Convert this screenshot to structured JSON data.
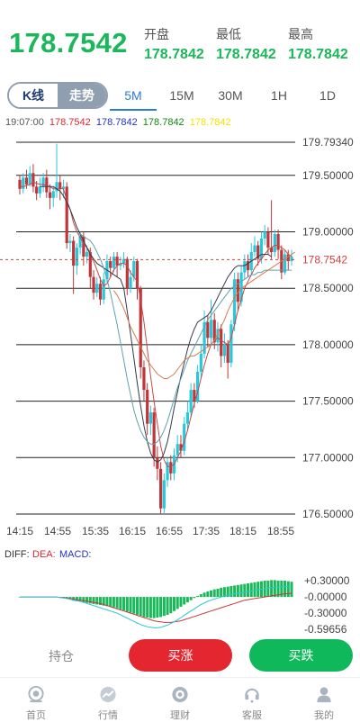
{
  "header": {
    "price": "178.7542",
    "open_label": "开盘",
    "open_value": "178.7842",
    "low_label": "最低",
    "low_value": "178.7842",
    "high_label": "最高",
    "high_value": "178.7842"
  },
  "tabs": {
    "kline_label": "K线",
    "trend_label": "走势",
    "periods": [
      "5M",
      "15M",
      "30M",
      "1H",
      "1D"
    ],
    "active_period": "5M"
  },
  "ma_legend": {
    "time": "19:07:00",
    "v1": "178.7542",
    "v2": "178.7842",
    "v3": "178.7842",
    "v4": "178.7842",
    "c1": "#e0262f",
    "c2": "#2233cc",
    "c3": "#118811",
    "c4": "#f2e200"
  },
  "chart_data": {
    "type": "candlestick",
    "y_ticks": [
      "179.79340",
      "179.50000",
      "179.00000",
      "178.50000",
      "178.00000",
      "177.50000",
      "177.00000",
      "176.50000"
    ],
    "x_ticks": [
      "14:15",
      "14:55",
      "15:35",
      "16:15",
      "16:55",
      "17:35",
      "18:15",
      "18:55"
    ],
    "current_price_label": "178.7542",
    "ylim": [
      176.5,
      179.7934
    ],
    "candles": [
      [
        179.46,
        179.38,
        179.5,
        179.33
      ],
      [
        179.38,
        179.48,
        179.52,
        179.34
      ],
      [
        179.48,
        179.42,
        179.55,
        179.38
      ],
      [
        179.42,
        179.52,
        179.58,
        179.4
      ],
      [
        179.52,
        179.4,
        179.6,
        179.35
      ],
      [
        179.4,
        179.34,
        179.45,
        179.28
      ],
      [
        179.34,
        179.4,
        179.48,
        179.3
      ],
      [
        179.4,
        179.48,
        179.52,
        179.35
      ],
      [
        179.48,
        179.35,
        179.55,
        179.3
      ],
      [
        179.35,
        179.3,
        179.42,
        179.2
      ],
      [
        179.3,
        179.36,
        179.4,
        179.22
      ],
      [
        179.36,
        179.44,
        179.78,
        179.3
      ],
      [
        179.44,
        179.38,
        179.5,
        179.28
      ],
      [
        179.38,
        179.4,
        179.46,
        179.3
      ],
      [
        179.4,
        178.9,
        179.44,
        178.85
      ],
      [
        178.9,
        178.92,
        178.98,
        178.82
      ],
      [
        178.92,
        178.7,
        178.96,
        178.45
      ],
      [
        178.7,
        178.86,
        178.9,
        178.62
      ],
      [
        178.86,
        178.96,
        179.0,
        178.8
      ],
      [
        178.96,
        178.78,
        179.0,
        178.7
      ],
      [
        178.78,
        178.82,
        178.88,
        178.72
      ],
      [
        178.82,
        178.6,
        178.86,
        178.5
      ],
      [
        178.6,
        178.46,
        178.66,
        178.4
      ],
      [
        178.46,
        178.54,
        178.6,
        178.42
      ],
      [
        178.54,
        178.4,
        178.6,
        178.35
      ],
      [
        178.4,
        178.58,
        178.64,
        178.36
      ],
      [
        178.58,
        178.74,
        178.8,
        178.55
      ],
      [
        178.74,
        178.68,
        178.78,
        178.6
      ],
      [
        178.68,
        178.78,
        178.82,
        178.64
      ],
      [
        178.78,
        178.7,
        178.82,
        178.6
      ],
      [
        178.7,
        178.72,
        178.78,
        178.66
      ],
      [
        178.72,
        178.76,
        178.82,
        178.68
      ],
      [
        178.76,
        178.5,
        178.78,
        178.44
      ],
      [
        178.5,
        178.6,
        178.66,
        178.46
      ],
      [
        178.6,
        178.74,
        178.78,
        178.56
      ],
      [
        178.74,
        178.5,
        178.76,
        178.4
      ],
      [
        178.5,
        177.8,
        178.52,
        177.7
      ],
      [
        177.8,
        177.6,
        177.86,
        177.5
      ],
      [
        177.6,
        177.3,
        177.66,
        177.2
      ],
      [
        177.3,
        177.4,
        177.46,
        177.2
      ],
      [
        177.4,
        177.0,
        177.44,
        176.92
      ],
      [
        177.0,
        176.9,
        177.1,
        176.8
      ],
      [
        176.9,
        176.55,
        176.96,
        176.5
      ],
      [
        176.55,
        176.8,
        176.86,
        176.5
      ],
      [
        176.8,
        176.96,
        177.0,
        176.74
      ],
      [
        176.96,
        176.86,
        177.02,
        176.8
      ],
      [
        176.86,
        177.02,
        177.08,
        176.8
      ],
      [
        177.02,
        177.12,
        177.2,
        176.96
      ],
      [
        177.12,
        177.06,
        177.2,
        177.0
      ],
      [
        177.06,
        177.3,
        177.36,
        177.02
      ],
      [
        177.3,
        177.4,
        177.5,
        177.24
      ],
      [
        177.4,
        177.6,
        177.66,
        177.36
      ],
      [
        177.6,
        177.5,
        177.66,
        177.44
      ],
      [
        177.5,
        177.76,
        177.82,
        177.48
      ],
      [
        177.76,
        177.92,
        178.0,
        177.7
      ],
      [
        177.92,
        178.2,
        178.3,
        177.88
      ],
      [
        178.2,
        178.06,
        178.26,
        177.98
      ],
      [
        178.06,
        178.22,
        178.4,
        178.0
      ],
      [
        178.22,
        178.02,
        178.28,
        177.96
      ],
      [
        178.02,
        178.14,
        178.2,
        177.94
      ],
      [
        178.14,
        177.9,
        178.18,
        177.8
      ],
      [
        177.9,
        178.0,
        178.1,
        177.84
      ],
      [
        178.0,
        177.84,
        178.04,
        177.7
      ],
      [
        177.84,
        178.18,
        178.22,
        177.8
      ],
      [
        178.18,
        178.58,
        178.64,
        178.12
      ],
      [
        178.58,
        178.38,
        178.64,
        178.3
      ],
      [
        178.38,
        178.64,
        178.7,
        178.34
      ],
      [
        178.64,
        178.74,
        178.8,
        178.58
      ],
      [
        178.74,
        178.66,
        178.8,
        178.6
      ],
      [
        178.66,
        178.82,
        178.9,
        178.62
      ],
      [
        178.82,
        178.88,
        178.96,
        178.78
      ],
      [
        178.88,
        178.76,
        178.92,
        178.7
      ],
      [
        178.76,
        178.94,
        179.0,
        178.72
      ],
      [
        178.94,
        179.0,
        179.06,
        178.88
      ],
      [
        179.0,
        178.86,
        179.04,
        178.8
      ],
      [
        178.86,
        178.82,
        179.28,
        178.76
      ],
      [
        178.82,
        178.98,
        179.02,
        178.78
      ],
      [
        178.98,
        178.84,
        179.02,
        178.76
      ],
      [
        178.84,
        178.64,
        178.88,
        178.58
      ],
      [
        178.64,
        178.8,
        178.84,
        178.62
      ],
      [
        178.8,
        178.74,
        178.84,
        178.66
      ],
      [
        178.74,
        178.78,
        178.84,
        178.7
      ]
    ],
    "ma_lines": [
      {
        "color": "#c44a4a",
        "values": [
          179.4,
          179.4,
          179.41,
          179.42,
          179.44,
          179.43,
          179.42,
          179.42,
          179.41,
          179.4,
          179.38,
          179.38,
          179.38,
          179.38,
          179.28,
          179.2,
          179.08,
          179.0,
          178.95,
          178.9,
          178.86,
          178.82,
          178.74,
          178.66,
          178.58,
          178.52,
          178.54,
          178.6,
          178.66,
          178.7,
          178.72,
          178.72,
          178.7,
          178.64,
          178.6,
          178.56,
          178.4,
          178.2,
          177.96,
          177.72,
          177.5,
          177.3,
          177.1,
          176.98,
          176.92,
          176.92,
          176.94,
          177.0,
          177.06,
          177.14,
          177.24,
          177.36,
          177.48,
          177.58,
          177.7,
          177.82,
          177.92,
          178.0,
          178.04,
          178.06,
          178.04,
          178.02,
          178.0,
          178.06,
          178.18,
          178.3,
          178.4,
          178.5,
          178.56,
          178.62,
          178.68,
          178.72,
          178.76,
          178.8,
          178.84,
          178.86,
          178.88,
          178.88,
          178.86,
          178.84,
          178.8,
          178.78
        ]
      },
      {
        "color": "#333a4a",
        "start": 6,
        "values": [
          179.4,
          179.4,
          179.4,
          179.4,
          179.4,
          179.38,
          179.36,
          179.32,
          179.26,
          179.2,
          179.12,
          179.04,
          178.98,
          178.92,
          178.86,
          178.8,
          178.76,
          178.72,
          178.7,
          178.68,
          178.66,
          178.64,
          178.62,
          178.6,
          178.58,
          178.5,
          178.3,
          178.1,
          177.88,
          177.66,
          177.46,
          177.28,
          177.14,
          177.04,
          176.98,
          176.96,
          176.98,
          177.04,
          177.14,
          177.28,
          177.44,
          177.58,
          177.72,
          177.84,
          177.96,
          178.06,
          178.14,
          178.2,
          178.22,
          178.24,
          178.26,
          178.3,
          178.36,
          178.42,
          178.48,
          178.54,
          178.6,
          178.64,
          178.68,
          178.7,
          178.7,
          178.7,
          178.72,
          178.74,
          178.76,
          178.78,
          178.8,
          178.8,
          178.8,
          178.78
        ]
      },
      {
        "color": "#5fa0b0",
        "start": 17,
        "values": [
          178.99,
          178.98,
          178.96,
          178.94,
          178.92,
          178.88,
          178.82,
          178.76,
          178.68,
          178.58,
          178.46,
          178.32,
          178.18,
          178.02,
          177.86,
          177.7,
          177.56,
          177.42,
          177.32,
          177.24,
          177.18,
          177.14,
          177.12,
          177.12,
          177.14,
          177.18,
          177.24,
          177.32,
          177.42,
          177.52,
          177.62,
          177.7,
          177.78,
          177.86,
          177.92,
          177.98,
          178.04,
          178.1,
          178.16,
          178.22,
          178.26,
          178.3,
          178.34,
          178.38,
          178.42,
          178.46,
          178.5,
          178.52,
          178.54,
          178.56,
          178.58,
          178.6,
          178.62,
          178.62,
          178.64,
          178.64,
          178.66,
          178.66,
          178.66,
          178.66,
          178.66,
          178.66,
          178.66,
          178.66,
          178.66
        ]
      },
      {
        "color": "#d87a50",
        "start": 28,
        "values": [
          178.48,
          178.44,
          178.38,
          178.32,
          178.24,
          178.16,
          178.1,
          178.04,
          177.98,
          177.92,
          177.86,
          177.82,
          177.78,
          177.74,
          177.72,
          177.7,
          177.7,
          177.72,
          177.74,
          177.78,
          177.82,
          177.86,
          177.88,
          177.9,
          177.9,
          177.92,
          177.94,
          177.96,
          177.98,
          178.0,
          178.04,
          178.1,
          178.16,
          178.22,
          178.3,
          178.36,
          178.42,
          178.46,
          178.5,
          178.52,
          178.54,
          178.56,
          178.58,
          178.6,
          178.62,
          178.64,
          178.66,
          178.68,
          178.7,
          178.72,
          178.74,
          178.76,
          178.78,
          178.8,
          178.82
        ]
      }
    ],
    "macd": {
      "legend": {
        "diff": "DIFF:",
        "dea": "DEA:",
        "macd": "MACD:"
      },
      "y_ticks": [
        "+0.30000",
        "-0.00000",
        "-0.30000",
        "-0.59656"
      ],
      "ylim": [
        -0.59656,
        0.35
      ],
      "hist": [
        0,
        0,
        0,
        0,
        0,
        0,
        0,
        0,
        0,
        0,
        0,
        0,
        0,
        -0.01,
        -0.03,
        -0.05,
        -0.07,
        -0.08,
        -0.09,
        -0.1,
        -0.11,
        -0.12,
        -0.13,
        -0.14,
        -0.15,
        -0.16,
        -0.17,
        -0.18,
        -0.19,
        -0.21,
        -0.23,
        -0.25,
        -0.27,
        -0.29,
        -0.31,
        -0.33,
        -0.35,
        -0.37,
        -0.38,
        -0.39,
        -0.39,
        -0.38,
        -0.37,
        -0.35,
        -0.33,
        -0.3,
        -0.26,
        -0.22,
        -0.18,
        -0.14,
        -0.1,
        -0.06,
        -0.02,
        0.02,
        0.05,
        0.08,
        0.1,
        0.12,
        0.14,
        0.15,
        0.17,
        0.18,
        0.19,
        0.2,
        0.21,
        0.22,
        0.23,
        0.24,
        0.25,
        0.26,
        0.27,
        0.28,
        0.29,
        0.3,
        0.3,
        0.31,
        0.31,
        0.3,
        0.3,
        0.3,
        0.29,
        0.28
      ],
      "dea": [
        0,
        0,
        0,
        0,
        0,
        0,
        0,
        0,
        0,
        0,
        0,
        0,
        -0.01,
        -0.01,
        -0.02,
        -0.03,
        -0.04,
        -0.05,
        -0.06,
        -0.07,
        -0.08,
        -0.09,
        -0.1,
        -0.11,
        -0.12,
        -0.14,
        -0.16,
        -0.18,
        -0.2,
        -0.22,
        -0.24,
        -0.26,
        -0.28,
        -0.3,
        -0.32,
        -0.34,
        -0.36,
        -0.38,
        -0.4,
        -0.42,
        -0.44,
        -0.45,
        -0.46,
        -0.47,
        -0.47,
        -0.47,
        -0.46,
        -0.45,
        -0.44,
        -0.42,
        -0.4,
        -0.38,
        -0.36,
        -0.34,
        -0.32,
        -0.3,
        -0.28,
        -0.26,
        -0.24,
        -0.22,
        -0.2,
        -0.18,
        -0.16,
        -0.14,
        -0.12,
        -0.1,
        -0.08,
        -0.06,
        -0.05,
        -0.04,
        -0.03,
        -0.02,
        -0.01,
        0.0,
        0.01,
        0.02,
        0.03,
        0.04,
        0.05,
        0.06,
        0.06,
        0.07
      ],
      "diff": [
        0,
        0,
        0,
        0,
        0,
        0,
        0,
        0,
        0,
        0,
        0,
        0,
        -0.01,
        -0.02,
        -0.03,
        -0.04,
        -0.06,
        -0.07,
        -0.08,
        -0.1,
        -0.12,
        -0.14,
        -0.16,
        -0.18,
        -0.2,
        -0.22,
        -0.24,
        -0.26,
        -0.28,
        -0.3,
        -0.33,
        -0.36,
        -0.39,
        -0.42,
        -0.45,
        -0.48,
        -0.51,
        -0.53,
        -0.55,
        -0.56,
        -0.57,
        -0.57,
        -0.56,
        -0.54,
        -0.52,
        -0.49,
        -0.46,
        -0.42,
        -0.38,
        -0.34,
        -0.3,
        -0.26,
        -0.22,
        -0.18,
        -0.14,
        -0.11,
        -0.08,
        -0.06,
        -0.04,
        -0.02,
        0.0,
        0.02,
        0.03,
        0.05,
        0.06,
        0.07,
        0.08,
        0.09,
        0.1,
        0.11,
        0.12,
        0.13,
        0.14,
        0.15,
        0.16,
        0.17,
        0.18,
        0.18,
        0.19,
        0.19,
        0.19,
        0.19
      ]
    }
  },
  "actions": {
    "hold_label": "持仓",
    "buy_up_label": "买涨",
    "buy_down_label": "买跌"
  },
  "nav": {
    "items": [
      "首页",
      "行情",
      "理财",
      "客服",
      "我的"
    ]
  },
  "colors": {
    "up": "#e3262f",
    "down": "#1ab85a",
    "bull_candle": "#26c9dc",
    "bear_candle": "#c0353a"
  }
}
